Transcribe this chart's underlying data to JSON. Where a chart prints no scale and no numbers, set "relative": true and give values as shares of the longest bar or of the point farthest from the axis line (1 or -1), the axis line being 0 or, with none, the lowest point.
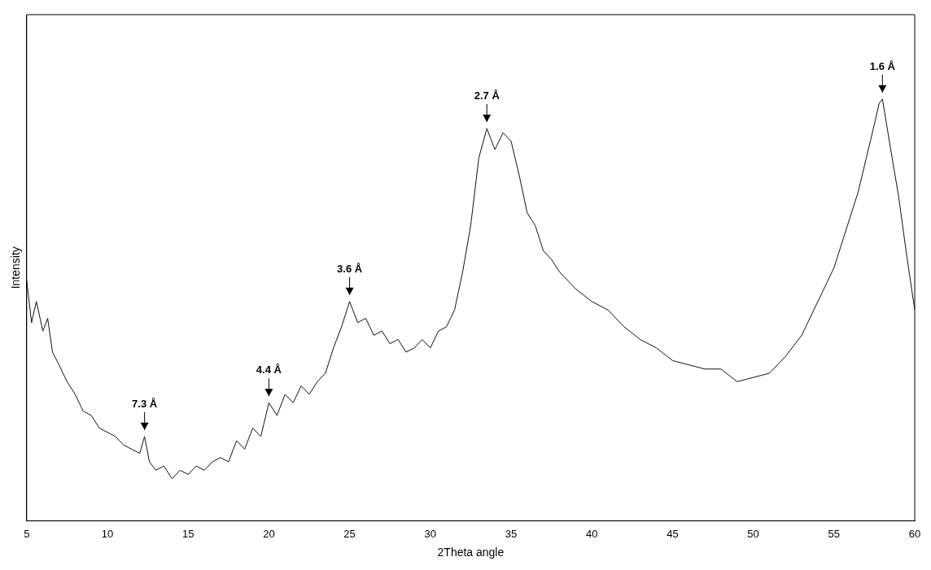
{
  "chart_data": {
    "type": "line",
    "relative": true,
    "xlabel": "2Theta angle",
    "ylabel": "Intensity",
    "xlim": [
      5,
      60
    ],
    "xticks": [
      5,
      10,
      15,
      20,
      25,
      30,
      35,
      40,
      45,
      50,
      55,
      60
    ],
    "grid": false,
    "legend": false,
    "marker": "none",
    "line_style": "solid",
    "x": [
      5,
      5.3,
      5.6,
      6,
      6.3,
      6.6,
      7,
      7.5,
      8,
      8.5,
      9,
      9.5,
      10,
      10.5,
      11,
      11.5,
      12,
      12.3,
      12.6,
      13,
      13.5,
      14,
      14.5,
      15,
      15.5,
      16,
      16.5,
      17,
      17.5,
      18,
      18.5,
      19,
      19.5,
      20,
      20.5,
      21,
      21.5,
      22,
      22.5,
      23,
      23.5,
      24,
      24.5,
      25,
      25.5,
      26,
      26.5,
      27,
      27.5,
      28,
      28.5,
      29,
      29.5,
      30,
      30.5,
      31,
      31.5,
      32,
      32.5,
      33,
      33.5,
      34,
      34.5,
      35,
      35.5,
      36,
      36.5,
      37,
      37.5,
      38,
      39,
      40,
      41,
      42,
      43,
      44,
      45,
      46,
      47,
      48,
      49,
      50,
      51,
      52,
      53,
      54,
      55,
      56,
      56.5,
      57,
      57.5,
      57.8,
      58,
      58.3,
      58.6,
      59,
      59.5,
      60
    ],
    "series": [
      {
        "color": "#111111",
        "values": [
          0.57,
          0.47,
          0.52,
          0.45,
          0.48,
          0.4,
          0.37,
          0.33,
          0.3,
          0.26,
          0.25,
          0.22,
          0.21,
          0.2,
          0.18,
          0.17,
          0.16,
          0.2,
          0.14,
          0.12,
          0.13,
          0.1,
          0.12,
          0.11,
          0.13,
          0.12,
          0.14,
          0.15,
          0.14,
          0.19,
          0.17,
          0.22,
          0.2,
          0.28,
          0.25,
          0.3,
          0.28,
          0.32,
          0.3,
          0.33,
          0.35,
          0.41,
          0.46,
          0.52,
          0.47,
          0.48,
          0.44,
          0.45,
          0.42,
          0.43,
          0.4,
          0.41,
          0.43,
          0.41,
          0.45,
          0.46,
          0.5,
          0.59,
          0.7,
          0.86,
          0.93,
          0.88,
          0.92,
          0.9,
          0.82,
          0.73,
          0.7,
          0.64,
          0.62,
          0.59,
          0.55,
          0.52,
          0.5,
          0.46,
          0.43,
          0.41,
          0.38,
          0.37,
          0.36,
          0.36,
          0.33,
          0.34,
          0.35,
          0.39,
          0.44,
          0.52,
          0.6,
          0.72,
          0.78,
          0.86,
          0.94,
          0.99,
          1,
          0.93,
          0.86,
          0.77,
          0.63,
          0.5
        ]
      }
    ],
    "annotations": [
      {
        "text": "7.3 Å",
        "x": 12.3,
        "y": 0.2
      },
      {
        "text": "4.4 Å",
        "x": 20,
        "y": 0.28
      },
      {
        "text": "3.6 Å",
        "x": 25,
        "y": 0.52
      },
      {
        "text": "2.7 Å",
        "x": 33.5,
        "y": 0.93
      },
      {
        "text": "1.6 Å",
        "x": 58,
        "y": 1.0
      }
    ]
  }
}
